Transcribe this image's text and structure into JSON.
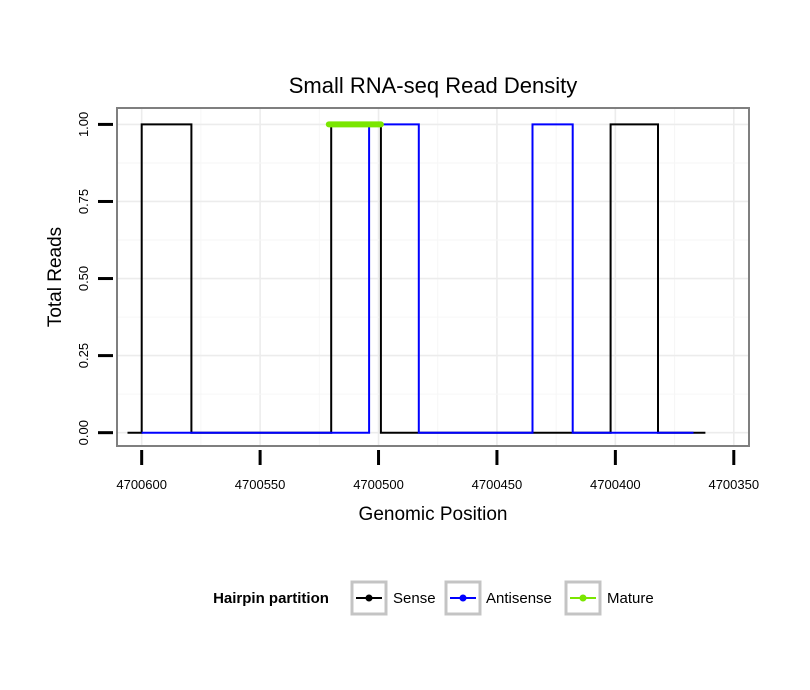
{
  "chart_data": {
    "type": "line",
    "title": "Small RNA-seq Read Density",
    "xlabel": "Genomic Position",
    "ylabel": "Total Reads",
    "xlim": [
      4700610,
      4700344
    ],
    "ylim": [
      -0.04,
      1.05
    ],
    "x_reversed": true,
    "x_ticks": [
      4700600,
      4700550,
      4700500,
      4700450,
      4700400,
      4700350
    ],
    "x_tick_labels": [
      "4700600",
      "4700550",
      "4700500",
      "4700450",
      "4700400",
      "4700350"
    ],
    "y_ticks": [
      0,
      0.25,
      0.5,
      0.75,
      1.0
    ],
    "y_tick_labels": [
      "0.00",
      "0.25",
      "0.50",
      "0.75",
      "1.00"
    ],
    "grid": true,
    "legend_position": "bottom",
    "legend_title": "Hairpin partition",
    "series": [
      {
        "name": "Sense",
        "color": "#000000",
        "points": [
          [
            4700606,
            0
          ],
          [
            4700600,
            0
          ],
          [
            4700600,
            1
          ],
          [
            4700579,
            1
          ],
          [
            4700579,
            0
          ],
          [
            4700520,
            0
          ],
          [
            4700520,
            1
          ],
          [
            4700499,
            1
          ],
          [
            4700499,
            0
          ],
          [
            4700402,
            0
          ],
          [
            4700402,
            1
          ],
          [
            4700382,
            1
          ],
          [
            4700382,
            0
          ],
          [
            4700362,
            0
          ]
        ]
      },
      {
        "name": "Antisense",
        "color": "#0000ff",
        "points": [
          [
            4700600,
            0
          ],
          [
            4700504,
            0
          ],
          [
            4700504,
            1
          ],
          [
            4700483,
            1
          ],
          [
            4700483,
            0
          ],
          [
            4700435,
            0
          ],
          [
            4700435,
            1
          ],
          [
            4700418,
            1
          ],
          [
            4700418,
            0
          ],
          [
            4700367,
            0
          ]
        ]
      },
      {
        "name": "Mature",
        "color": "#7ae600",
        "points": [
          [
            4700521,
            1
          ],
          [
            4700499,
            1
          ]
        ]
      }
    ]
  }
}
